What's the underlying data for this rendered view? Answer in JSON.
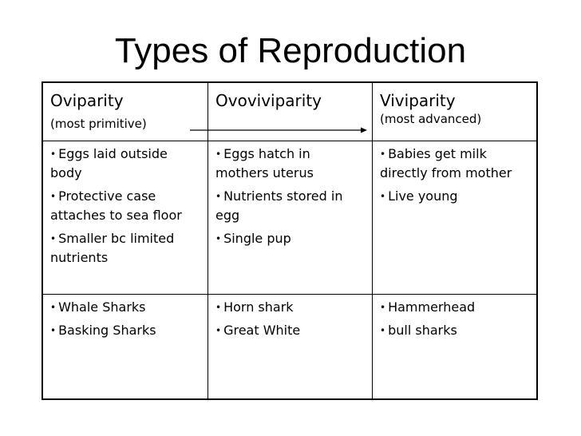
{
  "title": "Types of Reproduction",
  "table": {
    "header": [
      {
        "label": "Oviparity",
        "sub": "(most primitive)"
      },
      {
        "label": "Ovoviviparity",
        "sub": ""
      },
      {
        "label": "Viviparity",
        "sub": "(most advanced)"
      }
    ],
    "traits": [
      [
        "Eggs laid outside body",
        "Protective case attaches to sea floor",
        "Smaller bc limited nutrients"
      ],
      [
        "Eggs hatch in mothers uterus",
        "Nutrients stored in egg",
        "Single pup"
      ],
      [
        "Babies get milk directly from mother",
        "Live young"
      ]
    ],
    "examples": [
      [
        "Whale Sharks",
        "Basking Sharks"
      ],
      [
        "Horn shark",
        "Great White"
      ],
      [
        "Hammerhead",
        "bull sharks"
      ]
    ]
  },
  "bullet_symbol": "•",
  "arrow_color": "#000000"
}
